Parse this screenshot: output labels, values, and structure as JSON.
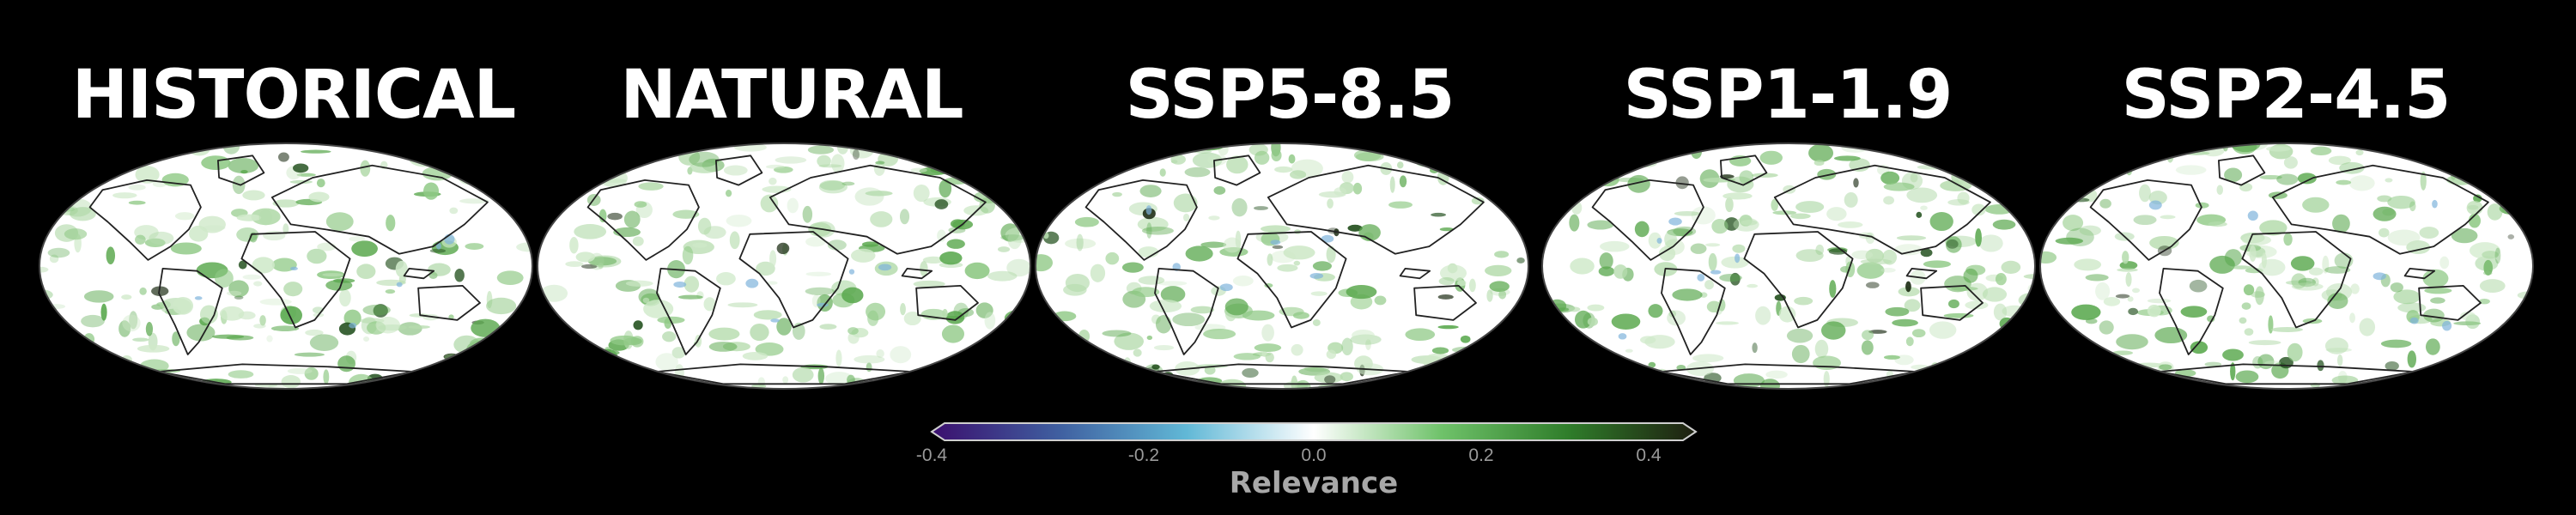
{
  "panels": [
    {
      "title": "HISTORICAL"
    },
    {
      "title": "NATURAL"
    },
    {
      "title": "SSP5-8.5"
    },
    {
      "title": "SSP1-1.9"
    },
    {
      "title": "SSP2-4.5"
    }
  ],
  "colorbar": {
    "label": "Relevance",
    "ticks": [
      "-0.4",
      "-0.2",
      "0.0",
      "0.2",
      "0.4"
    ],
    "colors": [
      "#3b0f6e",
      "#3f5fa0",
      "#61b8d6",
      "#ffffff",
      "#6fc26a",
      "#2f7d2a",
      "#1e1e10"
    ],
    "range": [
      -0.4,
      0.4
    ]
  },
  "colors": {
    "background": "#000000",
    "land_outline": "#222222",
    "positive_relevance": "#2f8a2f",
    "negative_relevance": "#5fa3d6"
  }
}
